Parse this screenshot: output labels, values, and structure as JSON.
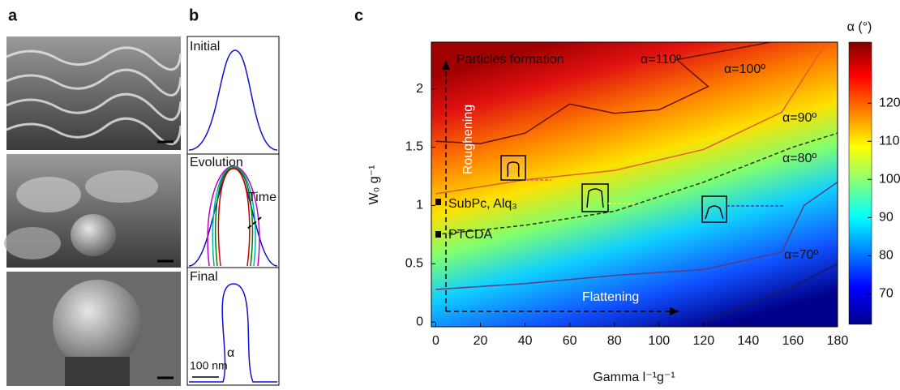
{
  "panels": {
    "a": {
      "label": "a"
    },
    "b": {
      "label": "b",
      "initial": "Initial",
      "evolution": "Evolution",
      "time": "Time",
      "final": "Final",
      "scale": "100 nm",
      "angle": "α"
    },
    "c": {
      "label": "c",
      "type": "heatmap",
      "xlabel": "Gamma l⁻¹g⁻¹",
      "ylabel": "W₀ g⁻¹",
      "colorbar_label": "α (°)",
      "xlim": [
        -2,
        180
      ],
      "ylim": [
        -0.04,
        2.4
      ],
      "xticks": [
        0,
        20,
        40,
        60,
        80,
        100,
        120,
        140,
        160,
        180
      ],
      "yticks": [
        0,
        0.5,
        1,
        1.5,
        2
      ],
      "clim": [
        62,
        136
      ],
      "cticks": [
        70,
        80,
        90,
        100,
        110,
        120
      ],
      "annotations": {
        "particles": "Particles formation",
        "roughening": "Roughening",
        "flattening": "Flattening",
        "subpc": "SubPc, Alq₃",
        "ptcda": "PTCDA"
      },
      "contours": [
        {
          "label": "α=110º",
          "color": "#6b0f0f",
          "x": [
            0,
            20,
            40,
            60,
            80,
            100,
            122,
            108,
            150
          ],
          "y": [
            1.55,
            1.53,
            1.62,
            1.87,
            1.79,
            1.82,
            2.02,
            2.25,
            2.4
          ]
        },
        {
          "label": "α=100º",
          "color": "#e0602a",
          "x": [
            0,
            40,
            80,
            120,
            155,
            175
          ],
          "y": [
            1.1,
            1.22,
            1.3,
            1.48,
            1.8,
            2.4
          ]
        },
        {
          "label": "α=90º",
          "color": "#333300",
          "x": [
            0,
            40,
            80,
            120,
            160,
            180
          ],
          "y": [
            0.75,
            0.83,
            0.95,
            1.2,
            1.5,
            1.62
          ]
        },
        {
          "label": "α=80º",
          "color": "#5a3a8a",
          "x": [
            0,
            40,
            80,
            120,
            155,
            165,
            180
          ],
          "y": [
            0.28,
            0.33,
            0.4,
            0.45,
            0.6,
            1.0,
            1.2
          ]
        },
        {
          "label": "α=70º",
          "color": "#1a1a5a",
          "x": [
            120,
            160,
            180
          ],
          "y": [
            0.0,
            0.3,
            0.5
          ]
        }
      ]
    }
  }
}
